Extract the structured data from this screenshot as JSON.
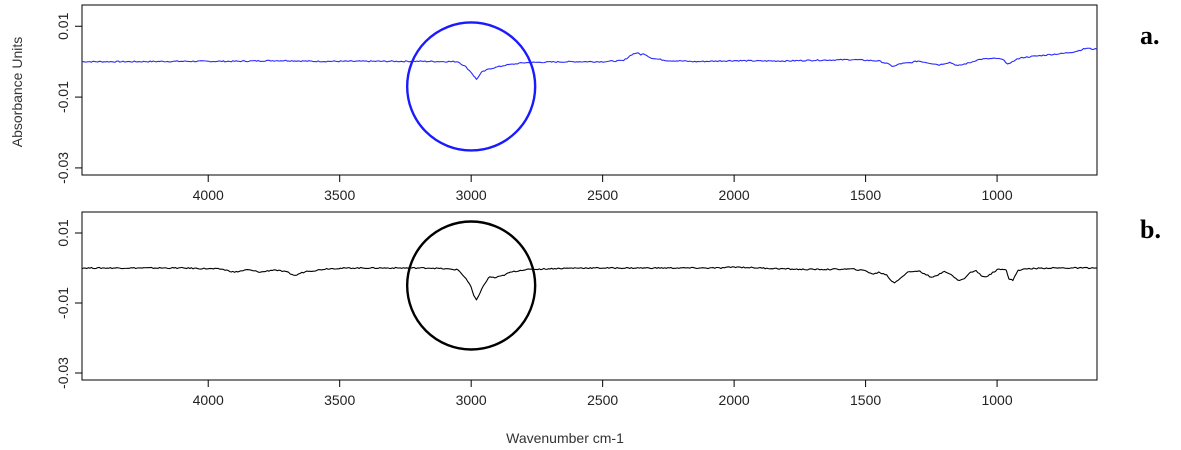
{
  "figure": {
    "xlabel": "Wavenumber cm-1",
    "ylabel": "Absorbance Units"
  },
  "chart_data": [
    {
      "type": "line",
      "panel_label": "a.",
      "ylabel": "Absorbance Units",
      "xlabel": "",
      "xlim": [
        4480,
        620
      ],
      "ylim": [
        -0.032,
        0.016
      ],
      "x_ticks": [
        4000,
        3500,
        3000,
        2500,
        2000,
        1500,
        1000
      ],
      "x_tick_labels": [
        "4000",
        "3500",
        "3000",
        "2500",
        "2000",
        "1500",
        "1000"
      ],
      "y_ticks": [
        0.01,
        -0.01,
        -0.03
      ],
      "y_tick_labels": [
        "0.01",
        "-0.01",
        "-0.03"
      ],
      "grid": false,
      "highlight": {
        "center_x": 3000,
        "center_y": -0.007,
        "color": "#1a1aff"
      },
      "series": [
        {
          "color": "#2a2aff",
          "x": [
            4480,
            4300,
            4100,
            3900,
            3750,
            3700,
            3600,
            3400,
            3200,
            3050,
            3020,
            3000,
            2990,
            2980,
            2960,
            2930,
            2900,
            2870,
            2850,
            2800,
            2700,
            2600,
            2500,
            2420,
            2390,
            2370,
            2355,
            2340,
            2320,
            2300,
            2250,
            2200,
            2150,
            2100,
            2000,
            1900,
            1800,
            1700,
            1600,
            1550,
            1500,
            1450,
            1420,
            1400,
            1390,
            1370,
            1330,
            1300,
            1270,
            1240,
            1220,
            1200,
            1180,
            1160,
            1150,
            1130,
            1100,
            1080,
            1060,
            1040,
            1000,
            980,
            960,
            950,
            930,
            900,
            850,
            800,
            750,
            700,
            660,
            640,
            620
          ],
          "y": [
            0.0,
            0.0,
            0.0001,
            0.0001,
            0.0003,
            0.0003,
            0.0001,
            0.0001,
            0.0001,
            0.0,
            -0.0015,
            -0.003,
            -0.004,
            -0.005,
            -0.003,
            -0.002,
            -0.0015,
            -0.001,
            -0.0008,
            -0.0003,
            -0.0001,
            0.0,
            0.0,
            0.0003,
            0.002,
            0.0025,
            0.002,
            0.0022,
            0.0012,
            0.0008,
            0.0003,
            0.0002,
            0.0,
            0.0001,
            0.0003,
            0.0002,
            0.0002,
            0.0004,
            0.0005,
            0.0006,
            0.0004,
            0.0002,
            -0.0005,
            -0.0012,
            -0.0013,
            -0.0006,
            -0.0003,
            0.0002,
            -0.0002,
            -0.0006,
            -0.0009,
            -0.0005,
            -0.0002,
            -0.0008,
            -0.0012,
            -0.0008,
            -0.0002,
            0.0004,
            0.0007,
            0.0008,
            0.0009,
            0.0006,
            -0.0005,
            -0.0006,
            0.0006,
            0.0012,
            0.0016,
            0.002,
            0.0023,
            0.0029,
            0.0038,
            0.0036,
            0.0035
          ]
        }
      ]
    },
    {
      "type": "line",
      "panel_label": "b.",
      "ylabel": "",
      "xlabel": "Wavenumber cm-1",
      "xlim": [
        4480,
        620
      ],
      "ylim": [
        -0.032,
        0.016
      ],
      "x_ticks": [
        4000,
        3500,
        3000,
        2500,
        2000,
        1500,
        1000
      ],
      "x_tick_labels": [
        "4000",
        "3500",
        "3000",
        "2500",
        "2000",
        "1500",
        "1000"
      ],
      "y_ticks": [
        0.01,
        -0.01,
        -0.03
      ],
      "y_tick_labels": [
        "0.01",
        "-0.01",
        "-0.03"
      ],
      "grid": false,
      "highlight": {
        "center_x": 3000,
        "center_y": -0.005,
        "color": "#000000"
      },
      "series": [
        {
          "color": "#000000",
          "x": [
            4480,
            4300,
            4100,
            3950,
            3900,
            3850,
            3800,
            3750,
            3700,
            3670,
            3650,
            3620,
            3600,
            3550,
            3450,
            3300,
            3150,
            3050,
            3020,
            3000,
            2990,
            2980,
            2960,
            2940,
            2930,
            2910,
            2880,
            2850,
            2800,
            2700,
            2600,
            2500,
            2300,
            2150,
            2050,
            2000,
            1900,
            1750,
            1650,
            1550,
            1500,
            1470,
            1450,
            1420,
            1400,
            1390,
            1370,
            1340,
            1300,
            1270,
            1250,
            1230,
            1200,
            1170,
            1150,
            1130,
            1100,
            1080,
            1060,
            1040,
            1000,
            980,
            965,
            955,
            940,
            920,
            880,
            800,
            700,
            620
          ],
          "y": [
            0.0,
            0.0,
            0.0,
            -0.0003,
            -0.0012,
            -0.0005,
            -0.0012,
            -0.0005,
            -0.0012,
            -0.0022,
            -0.0015,
            -0.0008,
            -0.0008,
            -0.0002,
            0.0,
            0.0,
            0.0,
            -0.0005,
            -0.003,
            -0.0055,
            -0.008,
            -0.0092,
            -0.006,
            -0.0035,
            -0.0025,
            -0.0028,
            -0.0022,
            -0.0012,
            -0.0005,
            -0.0002,
            0.0,
            0.0,
            0.0,
            0.0,
            0.0,
            0.0003,
            0.0,
            -0.0004,
            -0.0004,
            -0.0003,
            -0.0008,
            -0.0018,
            -0.0012,
            -0.002,
            -0.0038,
            -0.0042,
            -0.003,
            -0.0012,
            -0.0008,
            -0.0018,
            -0.0028,
            -0.0022,
            -0.0008,
            -0.0022,
            -0.0035,
            -0.0033,
            -0.0012,
            -0.0008,
            -0.0022,
            -0.0025,
            -0.0005,
            -0.0002,
            -0.0005,
            -0.0032,
            -0.0035,
            -0.0006,
            -0.0002,
            0.0,
            0.0,
            0.0
          ]
        }
      ]
    }
  ]
}
